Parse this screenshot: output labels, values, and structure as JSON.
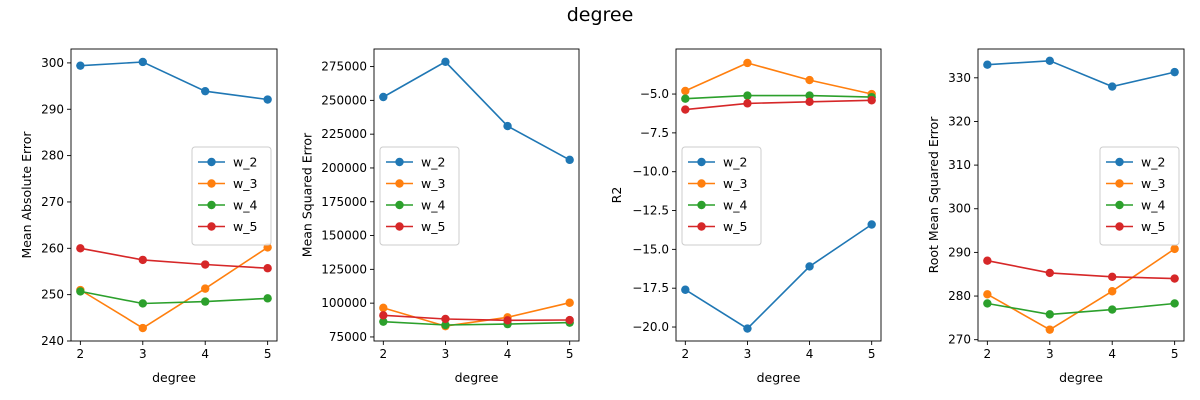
{
  "figure": {
    "suptitle": "degree"
  },
  "chart_data": [
    {
      "type": "line",
      "xlabel": "degree",
      "ylabel": "Mean Absolute Error",
      "x": [
        2,
        3,
        4,
        5
      ],
      "xticks": [
        "2",
        "3",
        "4",
        "5"
      ],
      "ylim": [
        240,
        303
      ],
      "yticks": [
        240,
        250,
        260,
        270,
        280,
        290,
        300
      ],
      "ytick_labels": [
        "240",
        "250",
        "260",
        "270",
        "280",
        "290",
        "300"
      ],
      "legend": "center-right",
      "series": [
        {
          "name": "w_2",
          "values": [
            299.4,
            300.2,
            293.9,
            292.1
          ],
          "color": "#1f77b4"
        },
        {
          "name": "w_3",
          "values": [
            251.0,
            242.8,
            251.3,
            260.2
          ],
          "color": "#ff7f0e"
        },
        {
          "name": "w_4",
          "values": [
            250.7,
            248.1,
            248.5,
            249.2
          ],
          "color": "#2ca02c"
        },
        {
          "name": "w_5",
          "values": [
            260.0,
            257.5,
            256.5,
            255.7
          ],
          "color": "#d62728"
        }
      ]
    },
    {
      "type": "line",
      "xlabel": "degree",
      "ylabel": "Mean Squared Error",
      "x": [
        2,
        3,
        4,
        5
      ],
      "xticks": [
        "2",
        "3",
        "4",
        "5"
      ],
      "ylim": [
        72000,
        288000
      ],
      "yticks": [
        75000,
        100000,
        125000,
        150000,
        175000,
        200000,
        225000,
        250000,
        275000
      ],
      "ytick_labels": [
        "75000",
        "100000",
        "125000",
        "150000",
        "175000",
        "200000",
        "225000",
        "250000",
        "275000"
      ],
      "legend": "center-left",
      "series": [
        {
          "name": "w_2",
          "values": [
            252500,
            278500,
            231000,
            206000
          ],
          "color": "#1f77b4"
        },
        {
          "name": "w_3",
          "values": [
            96500,
            83000,
            89500,
            100300
          ],
          "color": "#ff7f0e"
        },
        {
          "name": "w_4",
          "values": [
            86300,
            83800,
            84500,
            85600
          ],
          "color": "#2ca02c"
        },
        {
          "name": "w_5",
          "values": [
            91000,
            88300,
            87300,
            87500
          ],
          "color": "#d62728"
        }
      ]
    },
    {
      "type": "line",
      "xlabel": "degree",
      "ylabel": "R2",
      "x": [
        2,
        3,
        4,
        5
      ],
      "xticks": [
        "2",
        "3",
        "4",
        "5"
      ],
      "ylim": [
        -20.9,
        -2.1
      ],
      "yticks": [
        -20.0,
        -17.5,
        -15.0,
        -12.5,
        -10.0,
        -7.5,
        -5.0
      ],
      "ytick_labels": [
        "−20.0",
        "−17.5",
        "−15.0",
        "−12.5",
        "−10.0",
        "−7.5",
        "−5.0"
      ],
      "legend": "center-left",
      "series": [
        {
          "name": "w_2",
          "values": [
            -17.6,
            -20.1,
            -16.1,
            -13.4
          ],
          "color": "#1f77b4"
        },
        {
          "name": "w_3",
          "values": [
            -4.8,
            -3.0,
            -4.1,
            -5.0
          ],
          "color": "#ff7f0e"
        },
        {
          "name": "w_4",
          "values": [
            -5.3,
            -5.1,
            -5.1,
            -5.2
          ],
          "color": "#2ca02c"
        },
        {
          "name": "w_5",
          "values": [
            -6.0,
            -5.6,
            -5.5,
            -5.4
          ],
          "color": "#d62728"
        }
      ]
    },
    {
      "type": "line",
      "xlabel": "degree",
      "ylabel": "Root Mean Squared Error",
      "x": [
        2,
        3,
        4,
        5
      ],
      "xticks": [
        "2",
        "3",
        "4",
        "5"
      ],
      "ylim": [
        269.7,
        336.6
      ],
      "yticks": [
        270,
        280,
        290,
        300,
        310,
        320,
        330
      ],
      "ytick_labels": [
        "270",
        "280",
        "290",
        "300",
        "310",
        "320",
        "330"
      ],
      "legend": "center-right",
      "series": [
        {
          "name": "w_2",
          "values": [
            333.0,
            333.9,
            328.0,
            331.3
          ],
          "color": "#1f77b4"
        },
        {
          "name": "w_3",
          "values": [
            280.4,
            272.3,
            281.1,
            290.8
          ],
          "color": "#ff7f0e"
        },
        {
          "name": "w_4",
          "values": [
            278.3,
            275.8,
            276.9,
            278.3
          ],
          "color": "#2ca02c"
        },
        {
          "name": "w_5",
          "values": [
            288.1,
            285.3,
            284.4,
            284.0
          ],
          "color": "#d62728"
        }
      ]
    }
  ]
}
